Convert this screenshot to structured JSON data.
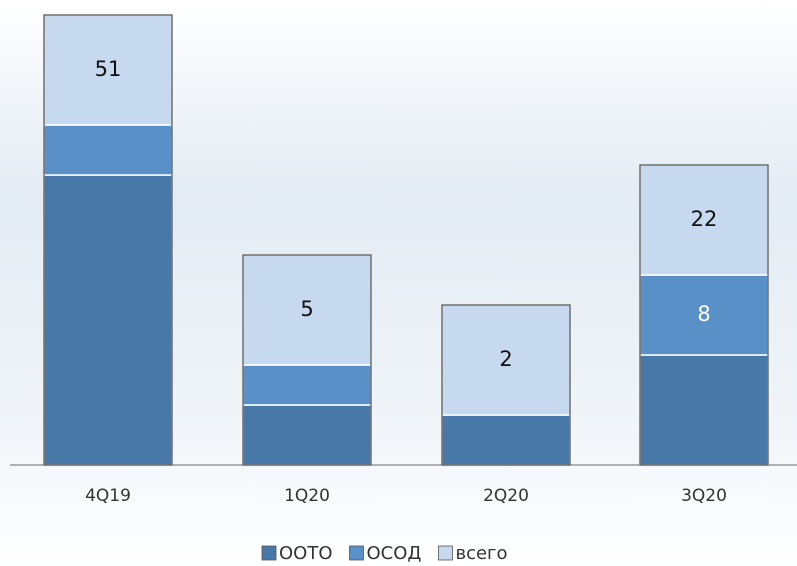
{
  "chart_data": {
    "type": "stacked_bar",
    "categories": [
      "4Q19",
      "1Q20",
      "2Q20",
      "3Q20"
    ],
    "series": [
      {
        "name": "ООТО",
        "color": "#4878a8",
        "values": [
          29,
          6,
          5,
          11
        ]
      },
      {
        "name": "ОСОД",
        "color": "#5a90c8",
        "values": [
          5,
          4,
          0,
          8
        ],
        "labels": [
          null,
          null,
          null,
          "8"
        ],
        "label_color": "#ffffff"
      },
      {
        "name": "всего",
        "color": "#c6d9ef",
        "values": [
          11,
          11,
          11,
          11
        ],
        "labels": [
          "51",
          "5",
          "2",
          "22"
        ],
        "label_color": "#111111"
      }
    ]
  }
}
